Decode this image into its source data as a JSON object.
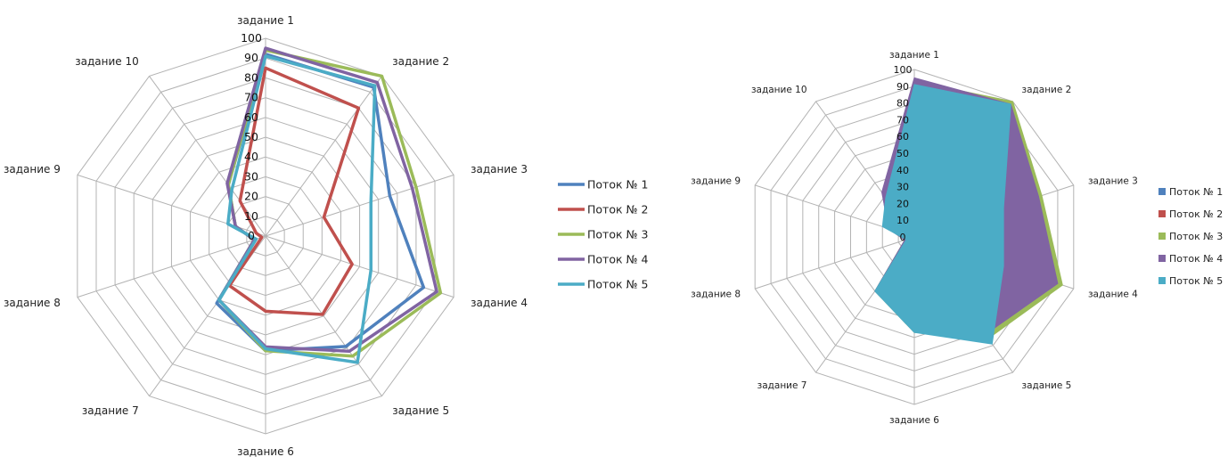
{
  "chart_data": [
    {
      "type": "radar",
      "style": "lines",
      "categories": [
        "задание 1",
        "задание 2",
        "задание 3",
        "задание 4",
        "задание 5",
        "задание 6",
        "задание 7",
        "задание 8",
        "задание 9",
        "задание 10"
      ],
      "rlim": [
        0,
        100
      ],
      "ticks": [
        "0",
        "10",
        "20",
        "30",
        "40",
        "50",
        "60",
        "70",
        "80",
        "90",
        "100"
      ],
      "grid": true,
      "legend": "right",
      "series": [
        {
          "name": "Поток № 1",
          "color": "#4F81BD",
          "values": [
            92,
            93,
            66,
            84,
            69,
            58,
            42,
            6,
            16,
            32
          ]
        },
        {
          "name": "Поток № 2",
          "color": "#C0504D",
          "values": [
            85,
            80,
            31,
            46,
            49,
            38,
            31,
            2,
            5,
            22
          ]
        },
        {
          "name": "Поток № 3",
          "color": "#9BBB59",
          "values": [
            94,
            100,
            80,
            93,
            75,
            58,
            40,
            6,
            16,
            32
          ]
        },
        {
          "name": "Поток № 4",
          "color": "#8064A2",
          "values": [
            95,
            96,
            78,
            91,
            72,
            56,
            40,
            6,
            16,
            33
          ]
        },
        {
          "name": "Поток № 5",
          "color": "#4BACC6",
          "values": [
            91,
            94,
            56,
            56,
            79,
            57,
            40,
            5,
            20,
            29
          ]
        }
      ]
    },
    {
      "type": "radar",
      "style": "filled",
      "categories": [
        "задание 1",
        "задание 2",
        "задание 3",
        "задание 4",
        "задание 5",
        "задание 6",
        "задание 7",
        "задание 8",
        "задание 9",
        "задание 10"
      ],
      "rlim": [
        0,
        100
      ],
      "ticks": [
        "0",
        "10",
        "20",
        "30",
        "40",
        "50",
        "60",
        "70",
        "80",
        "90",
        "100"
      ],
      "grid": true,
      "legend": "right",
      "series": [
        {
          "name": "Поток № 1",
          "color": "#4F81BD",
          "values": [
            90,
            98,
            66,
            84,
            70,
            57,
            40,
            6,
            17,
            32
          ]
        },
        {
          "name": "Поток № 2",
          "color": "#C0504D",
          "values": [
            84,
            80,
            30,
            45,
            48,
            37,
            30,
            2,
            5,
            22
          ]
        },
        {
          "name": "Поток № 3",
          "color": "#9BBB59",
          "values": [
            93,
            100,
            80,
            93,
            75,
            57,
            40,
            6,
            16,
            32
          ]
        },
        {
          "name": "Поток № 4",
          "color": "#8064A2",
          "values": [
            95,
            98,
            78,
            90,
            72,
            56,
            40,
            6,
            16,
            33
          ]
        },
        {
          "name": "Поток № 5",
          "color": "#4BACC6",
          "values": [
            91,
            98,
            56,
            56,
            79,
            57,
            40,
            5,
            20,
            29
          ]
        }
      ]
    }
  ]
}
